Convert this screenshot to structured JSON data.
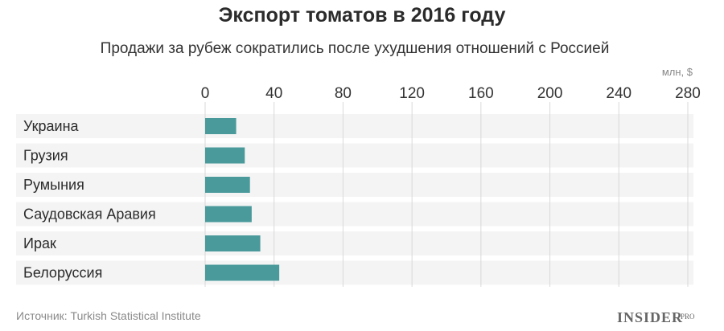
{
  "chart_data": {
    "type": "bar",
    "orientation": "horizontal",
    "title": "Экспорт томатов в 2016 году",
    "subtitle": "Продажи за рубеж сократились после ухудшения отношений с Россией",
    "unit_label": "млн, $",
    "xlim": [
      0,
      280
    ],
    "xticks": [
      "0",
      "40",
      "80",
      "120",
      "160",
      "200",
      "240",
      "280"
    ],
    "categories": [
      "Украина",
      "Грузия",
      "Румыния",
      "Саудовская Аравия",
      "Ирак",
      "Белоруссия"
    ],
    "values": [
      18,
      23,
      26,
      27,
      32,
      43
    ],
    "grid": true,
    "colors": {
      "bar": "#4a9a9b",
      "row_band": "#f4f4f4",
      "grid": "#d9d9d9"
    }
  },
  "source": "Источник: Turkish Statistical Institute",
  "brand": {
    "name": "INSIDER",
    "suffix": "PRO"
  }
}
